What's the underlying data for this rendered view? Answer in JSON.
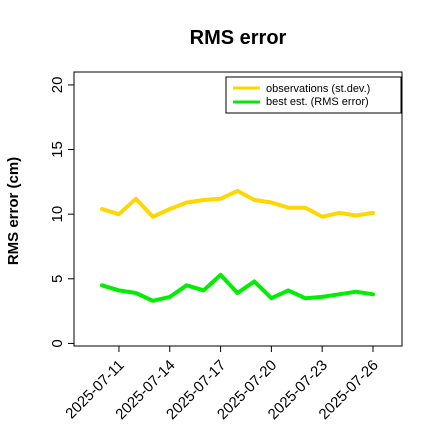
{
  "chart_data": {
    "type": "line",
    "title": "RMS error",
    "xlabel": "",
    "ylabel": "RMS error (cm)",
    "ylim": [
      -0.2,
      21
    ],
    "yticks": [
      0,
      5,
      10,
      15,
      20
    ],
    "x": [
      "2025-07-10",
      "2025-07-11",
      "2025-07-12",
      "2025-07-13",
      "2025-07-14",
      "2025-07-15",
      "2025-07-16",
      "2025-07-17",
      "2025-07-18",
      "2025-07-19",
      "2025-07-20",
      "2025-07-21",
      "2025-07-22",
      "2025-07-23",
      "2025-07-24",
      "2025-07-25",
      "2025-07-26"
    ],
    "xticks": [
      {
        "label": "2025-07-11",
        "color": "#000000"
      },
      {
        "label": "2025-07-14",
        "color": "#000000"
      },
      {
        "label": "2025-07-17",
        "color": "#2e8b2e"
      },
      {
        "label": "2025-07-20",
        "color": "#000000"
      },
      {
        "label": "2025-07-23",
        "color": "#000000"
      },
      {
        "label": "2025-07-26",
        "color": "#000000"
      }
    ],
    "grid": false,
    "legend_position": "top-right",
    "series": [
      {
        "name": "observations (st.dev.)",
        "color": "#ffd700",
        "values": [
          10.4,
          10.0,
          11.2,
          9.8,
          10.4,
          10.9,
          11.1,
          11.2,
          11.8,
          11.1,
          10.9,
          10.5,
          10.5,
          9.8,
          10.1,
          9.9,
          10.1
        ]
      },
      {
        "name": "best est. (RMS error)",
        "color": "#00ee00",
        "values": [
          4.5,
          4.1,
          3.9,
          3.3,
          3.6,
          4.5,
          4.1,
          5.3,
          3.9,
          4.8,
          3.5,
          4.1,
          3.5,
          3.6,
          3.8,
          4.0,
          3.8
        ]
      }
    ]
  }
}
